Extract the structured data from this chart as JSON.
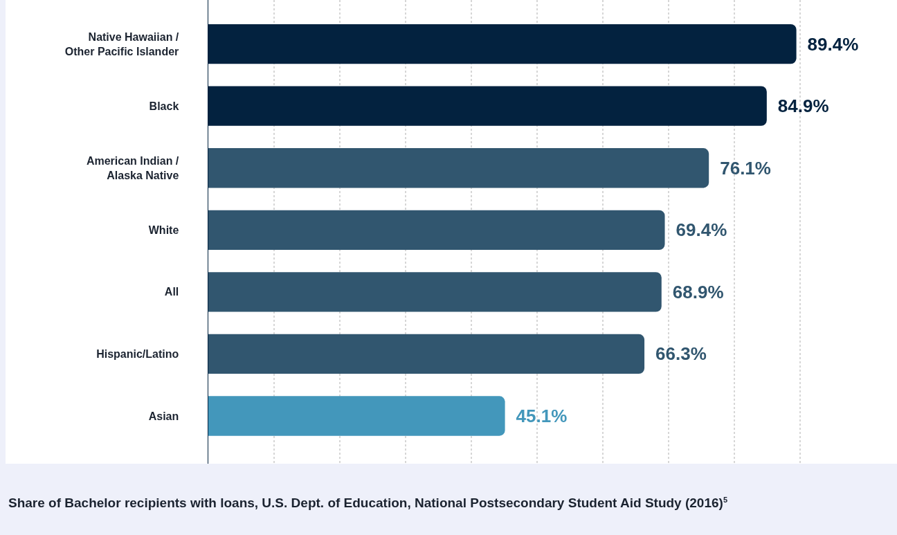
{
  "chart_data": {
    "type": "bar",
    "orientation": "horizontal",
    "categories": [
      "Native Hawaiian / Other Pacific Islander",
      "Black",
      "American Indian / Alaska Native",
      "White",
      "All",
      "Hispanic/Latino",
      "Asian"
    ],
    "values": [
      89.4,
      84.9,
      76.1,
      69.4,
      68.9,
      66.3,
      45.1
    ],
    "colors": [
      "#03223f",
      "#03223f",
      "#31566f",
      "#31566f",
      "#31566f",
      "#31566f",
      "#4397bb"
    ],
    "value_labels": [
      "89.4%",
      "84.9%",
      "76.1%",
      "69.4%",
      "68.9%",
      "66.3%",
      "45.1%"
    ],
    "xlim": [
      0,
      104.7
    ],
    "xticks": [
      {
        "value": 10,
        "label": null
      },
      {
        "value": 20,
        "label": null
      },
      {
        "value": 30,
        "label": null
      },
      {
        "value": 40,
        "label": null
      },
      {
        "value": 50,
        "label": null
      },
      {
        "value": 60,
        "label": null
      },
      {
        "value": 70,
        "label": null
      },
      {
        "value": 80,
        "label": null
      },
      {
        "value": 90,
        "label": null
      }
    ],
    "tick_labels": "y",
    "grid": "x",
    "annotations": [
      "Share of Bachelor recipients with loans, U.S. Dept. of Education, National Postsecondary Student Aid Study (2016)$^{5}$"
    ]
  }
}
